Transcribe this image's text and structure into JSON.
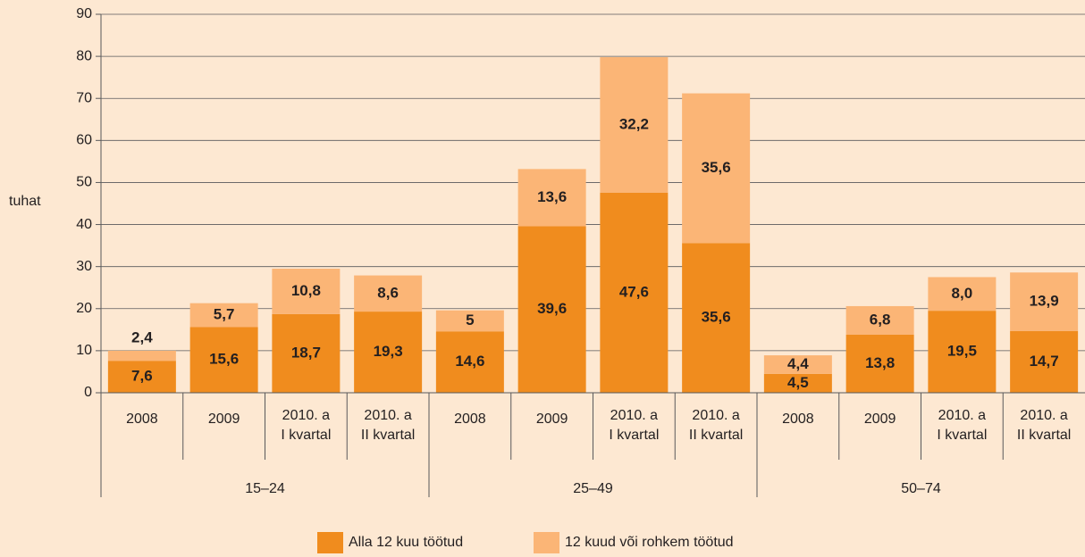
{
  "chart_data": {
    "type": "stacked_bar",
    "y_label": "tuhat",
    "categories": [
      "2008",
      "2009",
      "2010. a\nI kvartal",
      "2010. a\nII kvartal",
      "2008",
      "2009",
      "2010. a\nI kvartal",
      "2010. a\nII kvartal",
      "2008",
      "2009",
      "2010. a\nI kvartal",
      "2010. a\nII kvartal"
    ],
    "groups": [
      "15–24",
      "25–49",
      "50–74"
    ],
    "series": [
      {
        "name": "Alla 12 kuu töötud",
        "color": "#f08c1e",
        "values": [
          7.6,
          15.6,
          18.7,
          19.3,
          14.6,
          39.6,
          47.6,
          35.6,
          4.5,
          13.8,
          19.5,
          14.7
        ],
        "value_labels": [
          "7,6",
          "15,6",
          "18,7",
          "19,3",
          "14,6",
          "39,6",
          "47,6",
          "35,6",
          "4,5",
          "13,8",
          "19,5",
          "14,7"
        ]
      },
      {
        "name": "12 kuud või rohkem töötud",
        "color": "#fbb576",
        "values": [
          2.4,
          5.7,
          10.8,
          8.6,
          5,
          13.6,
          32.2,
          35.6,
          4.4,
          6.8,
          8.0,
          13.9
        ],
        "value_labels": [
          "2,4",
          "5,7",
          "10,8",
          "8,6",
          "5",
          "13,6",
          "32,2",
          "35,6",
          "4,4",
          "6,8",
          "8,0",
          "13,9"
        ]
      }
    ],
    "ylim": [
      0,
      90
    ],
    "yticks": [
      0,
      10,
      20,
      30,
      40,
      50,
      60,
      70,
      80,
      90
    ],
    "grid": true
  }
}
